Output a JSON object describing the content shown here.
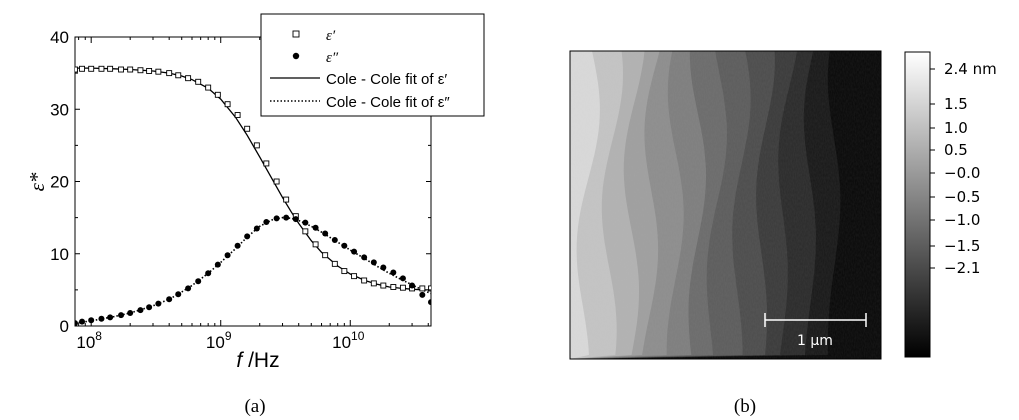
{
  "chart_data": [
    {
      "type": "scatter",
      "panel_label": "(a)",
      "xlabel_italic": "f",
      "xlabel_unit": " /Hz",
      "ylabel": "ε*",
      "x_scale": "log",
      "xlim": [
        75000000.0,
        42000000000.0
      ],
      "ylim": [
        0,
        40
      ],
      "x_ticks": [
        {
          "value": 100000000.0,
          "label_base": "10",
          "label_exp": "8"
        },
        {
          "value": 1000000000.0,
          "label_base": "10",
          "label_exp": "9"
        },
        {
          "value": 10000000000.0,
          "label_base": "10",
          "label_exp": "10"
        }
      ],
      "y_ticks": [
        0,
        10,
        20,
        30,
        40
      ],
      "legend_position": "top-right",
      "legend": [
        {
          "label": "ε′",
          "marker": "open-square"
        },
        {
          "label": "ε″",
          "marker": "filled-circle"
        },
        {
          "label": "Cole - Cole fit of ε′",
          "line": "solid"
        },
        {
          "label": "Cole - Cole fit of ε″",
          "line": "dotted"
        }
      ],
      "series": [
        {
          "name": "ε′",
          "marker": "open-square",
          "x": [
            75000000.0,
            85000000.0,
            100000000.0,
            120000000.0,
            140000000.0,
            170000000.0,
            200000000.0,
            240000000.0,
            280000000.0,
            330000000.0,
            400000000.0,
            470000000.0,
            560000000.0,
            670000000.0,
            800000000.0,
            950000000.0,
            1130000000.0,
            1350000000.0,
            1600000000.0,
            1900000000.0,
            2250000000.0,
            2700000000.0,
            3200000000.0,
            3800000000.0,
            4500000000.0,
            5400000000.0,
            6400000000.0,
            7600000000.0,
            9000000000.0,
            10700000000.0,
            12800000000.0,
            15200000000.0,
            18000000000.0,
            21500000000.0,
            25500000000.0,
            30000000000.0,
            36000000000.0,
            42000000000.0
          ],
          "y": [
            35.5,
            35.6,
            35.6,
            35.6,
            35.6,
            35.5,
            35.5,
            35.4,
            35.3,
            35.2,
            35.0,
            34.7,
            34.3,
            33.8,
            33.0,
            32.0,
            30.7,
            29.2,
            27.3,
            25.0,
            22.5,
            20.0,
            17.5,
            15.2,
            13.1,
            11.3,
            9.8,
            8.6,
            7.6,
            6.9,
            6.3,
            5.9,
            5.6,
            5.4,
            5.3,
            5.2,
            5.2,
            5.2
          ]
        },
        {
          "name": "ε″",
          "marker": "filled-circle",
          "x": [
            75000000.0,
            85000000.0,
            100000000.0,
            120000000.0,
            140000000.0,
            170000000.0,
            200000000.0,
            240000000.0,
            280000000.0,
            330000000.0,
            400000000.0,
            470000000.0,
            560000000.0,
            670000000.0,
            800000000.0,
            950000000.0,
            1130000000.0,
            1350000000.0,
            1600000000.0,
            1900000000.0,
            2250000000.0,
            2700000000.0,
            3200000000.0,
            3800000000.0,
            4500000000.0,
            5400000000.0,
            6400000000.0,
            7600000000.0,
            9000000000.0,
            10700000000.0,
            12800000000.0,
            15200000000.0,
            18000000000.0,
            21500000000.0,
            25500000000.0,
            30000000000.0,
            36000000000.0,
            42000000000.0
          ],
          "y": [
            0.4,
            0.6,
            0.8,
            1.0,
            1.2,
            1.5,
            1.8,
            2.2,
            2.6,
            3.1,
            3.7,
            4.4,
            5.2,
            6.2,
            7.3,
            8.5,
            9.8,
            11.1,
            12.4,
            13.5,
            14.4,
            14.9,
            15.0,
            14.8,
            14.3,
            13.6,
            12.8,
            11.9,
            11.1,
            10.3,
            9.5,
            8.8,
            8.1,
            7.4,
            6.6,
            5.6,
            4.3,
            3.3
          ]
        },
        {
          "name": "Cole - Cole fit of ε′",
          "line": "solid",
          "x": [
            75000000.0,
            100000000.0,
            150000000.0,
            200000000.0,
            300000000.0,
            400000000.0,
            500000000.0,
            600000000.0,
            800000000.0,
            1000000000.0,
            1300000000.0,
            1600000000.0,
            2000000000.0,
            2500000000.0,
            3000000000.0,
            3500000000.0,
            4000000000.0,
            5000000000.0,
            6000000000.0,
            8000000000.0,
            10000000000.0,
            13000000000.0,
            16000000000.0,
            20000000000.0,
            25000000000.0,
            30000000000.0,
            36000000000.0,
            42000000000.0
          ],
          "y": [
            35.7,
            35.7,
            35.6,
            35.5,
            35.3,
            35.0,
            34.6,
            34.1,
            32.9,
            31.4,
            28.9,
            26.4,
            23.4,
            20.3,
            17.8,
            15.8,
            14.2,
            11.8,
            10.2,
            8.3,
            7.2,
            6.3,
            5.8,
            5.4,
            5.2,
            5.1,
            5.0,
            5.0
          ]
        },
        {
          "name": "Cole - Cole fit of ε″",
          "line": "dotted",
          "x": [
            75000000.0,
            100000000.0,
            150000000.0,
            200000000.0,
            300000000.0,
            400000000.0,
            500000000.0,
            600000000.0,
            800000000.0,
            1000000000.0,
            1300000000.0,
            1600000000.0,
            2000000000.0,
            2500000000.0,
            3000000000.0,
            3500000000.0,
            4000000000.0,
            5000000000.0,
            6000000000.0,
            8000000000.0,
            10000000000.0,
            13000000000.0,
            16000000000.0,
            20000000000.0,
            25000000000.0,
            30000000000.0,
            36000000000.0,
            42000000000.0
          ],
          "y": [
            0.4,
            0.7,
            1.3,
            1.8,
            2.8,
            3.7,
            4.7,
            5.6,
            7.3,
            8.8,
            10.7,
            12.3,
            13.8,
            14.7,
            15.0,
            14.9,
            14.6,
            13.8,
            13.0,
            11.6,
            10.5,
            9.3,
            8.3,
            7.3,
            6.4,
            5.7,
            5.0,
            4.5
          ]
        }
      ]
    },
    {
      "type": "heatmap",
      "panel_label": "(b)",
      "colorbar_ticks": [
        "2.4 nm",
        "1.5",
        "1.0",
        "0.5",
        "−0.0",
        "−0.5",
        "−1.0",
        "−1.5",
        "−2.1"
      ],
      "colorbar_range": [
        -2.1,
        2.4
      ],
      "colormap": "gray",
      "scale_bar_label": "1 μm",
      "step_levels": [
        1.9,
        1.5,
        1.15,
        0.8,
        0.45,
        0.15,
        -0.2,
        -0.5,
        -0.8,
        -1.15,
        -1.45,
        -1.8,
        -2.1
      ]
    }
  ]
}
